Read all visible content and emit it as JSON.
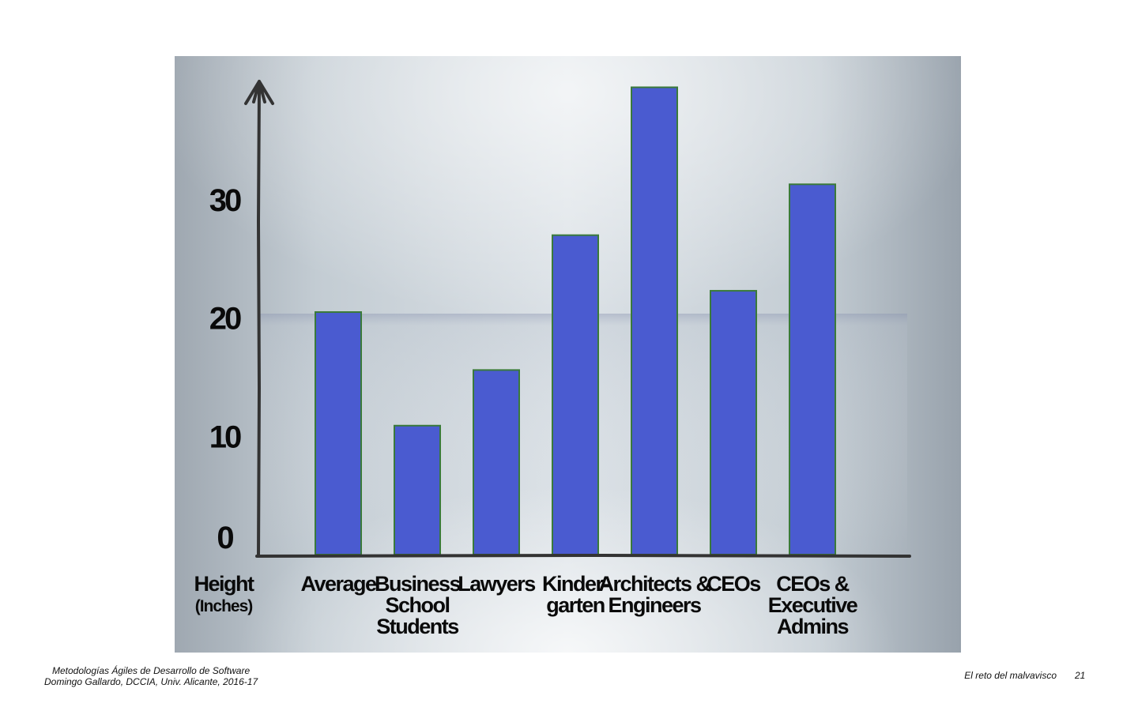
{
  "chart_data": {
    "type": "bar",
    "title": "",
    "xlabel": "",
    "ylabel": "Height",
    "ylabel_sub": "(Inches)",
    "ylim": [
      0,
      39.4
    ],
    "yticks": [
      0,
      10,
      20,
      30
    ],
    "grid": false,
    "categories": [
      [
        "Average"
      ],
      [
        "Business",
        "School",
        "Students"
      ],
      [
        "Lawyers"
      ],
      [
        "Kinder-",
        "garten"
      ],
      [
        "Architects &",
        "Engineers"
      ],
      [
        "CEOs"
      ],
      [
        "CEOs &",
        "Executive",
        "Admins"
      ]
    ],
    "values": [
      20.5,
      10.9,
      15.6,
      27.0,
      39.5,
      22.3,
      31.3
    ],
    "colors": {
      "bar_fill": "#4a5bd0",
      "bar_stroke": "#3a7a3a",
      "axis": "#333333"
    }
  },
  "footer": {
    "line1": "Metodologías Ágiles de Desarrollo de Software",
    "line2": "Domingo Gallardo, DCCIA, Univ. Alicante, 2016-17",
    "title": "El reto del malvavisco",
    "page": "21"
  }
}
